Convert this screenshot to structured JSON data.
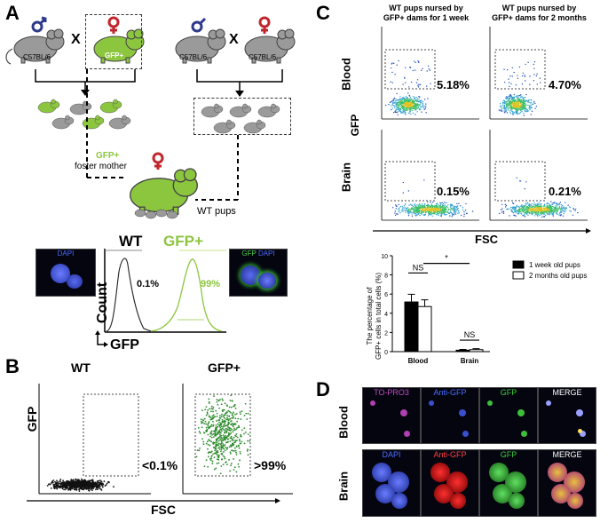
{
  "panels": {
    "a": "A",
    "b": "B",
    "c": "C",
    "d": "D"
  },
  "panel_a": {
    "strain_left": "C57BL/6",
    "gfp_mouse_label": "GFP+",
    "strain_right_1": "C57BL/6",
    "strain_right_2": "C57BL/6",
    "cross_symbol": "X",
    "foster_label_1": "GFP+",
    "foster_label_2": "foster mother",
    "wt_pups": "WT pups",
    "hist_wt": "WT",
    "hist_gfp": "GFP+",
    "pct_wt": "0.1%",
    "pct_gfp": "99%",
    "count_axis": "Count",
    "gfp_axis": "GFP",
    "dapi_label": "DAPI",
    "gfp_dapi_label_gfp": "GFP",
    "gfp_dapi_label_dapi": "DAPI"
  },
  "panel_b": {
    "wt_title": "WT",
    "gfp_title": "GFP+",
    "pct_wt": "<0.1%",
    "pct_gfp": ">99%",
    "y_axis": "GFP",
    "x_axis": "FSC"
  },
  "panel_c": {
    "col1_title_1": "WT pups nursed by",
    "col1_title_2": "GFP+ dams for 1 week",
    "col2_title_1": "WT pups nursed by",
    "col2_title_2": "GFP+ dams for 2 months",
    "row_blood": "Blood",
    "row_brain": "Brain",
    "y_axis": "GFP",
    "x_axis": "FSC",
    "pct_blood_1w": "5.18%",
    "pct_blood_2m": "4.70%",
    "pct_brain_1w": "0.15%",
    "pct_brain_2m": "0.21%",
    "ns_label": "NS",
    "sig_label": "*"
  },
  "chart_data": {
    "type": "bar",
    "categories": [
      "Blood",
      "Brain"
    ],
    "series": [
      {
        "name": "1 week old pups",
        "values": [
          5.18,
          0.15
        ],
        "errors": [
          0.8,
          0.08
        ],
        "color": "#000000"
      },
      {
        "name": "2 months old pups",
        "values": [
          4.7,
          0.21
        ],
        "errors": [
          0.7,
          0.1
        ],
        "color": "#ffffff"
      }
    ],
    "ylabel_1": "The percentage of",
    "ylabel_2": "GFP+ cells in total cells (%)",
    "ylim": [
      0,
      10
    ],
    "yticks": [
      "0",
      "2",
      "4",
      "6",
      "8",
      "10"
    ],
    "annotations": [
      "NS",
      "NS",
      "*"
    ]
  },
  "panel_d": {
    "row_blood": "Blood",
    "row_brain": "Brain",
    "blood_cols": [
      "TO-PRO3",
      "Anti-GFP",
      "GFP",
      "MERGE"
    ],
    "brain_cols": [
      "DAPI",
      "Anti-GFP",
      "GFP",
      "MERGE"
    ]
  },
  "colors": {
    "gfp_green": "#8cc63f",
    "male_blue": "#2e3a8c",
    "female_red": "#c0272d"
  }
}
